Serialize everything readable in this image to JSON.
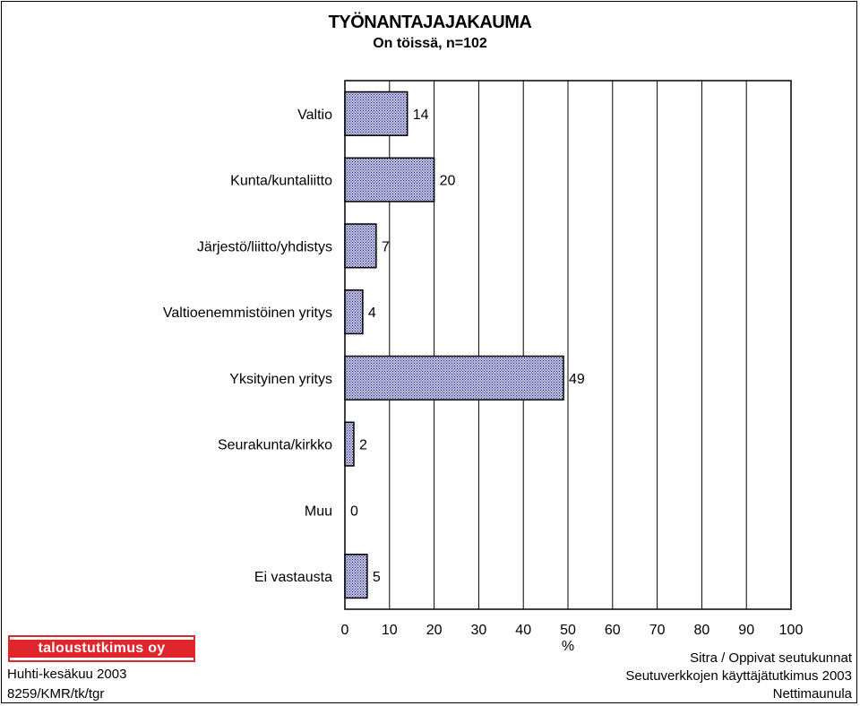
{
  "chart_data": {
    "type": "bar",
    "orientation": "horizontal",
    "title": "TYÖNANTAJAJAKAUMA",
    "subtitle": "On töissä, n=102",
    "categories": [
      "Valtio",
      "Kunta/kuntaliitto",
      "Järjestö/liitto/yhdistys",
      "Valtioenemmistöinen yritys",
      "Yksityinen yritys",
      "Seurakunta/kirkko",
      "Muu",
      "Ei vastausta"
    ],
    "values": [
      14,
      20,
      7,
      4,
      49,
      2,
      0,
      5
    ],
    "data_labels": [
      "14",
      "20",
      "7",
      "4",
      "49",
      "2",
      "0",
      "5"
    ],
    "xlabel": "%",
    "xlim": [
      0,
      100
    ],
    "xticks": [
      "0",
      "10",
      "20",
      "30",
      "40",
      "50",
      "60",
      "70",
      "80",
      "90",
      "100"
    ],
    "grid": "vertical",
    "bar_fill": "#aeb0d4",
    "bar_pattern": "crosshatch",
    "bar_stroke": "#000000"
  },
  "logo": {
    "text": "taloustutkimus oy",
    "color": "#e0262b"
  },
  "footer": {
    "left": [
      "Huhti-kesäkuu 2003",
      "8259/KMR/tk/tgr"
    ],
    "right": [
      "Sitra / Oppivat seutukunnat",
      "Seutuverkkojen käyttäjätutkimus 2003",
      "Nettimaunula"
    ]
  }
}
